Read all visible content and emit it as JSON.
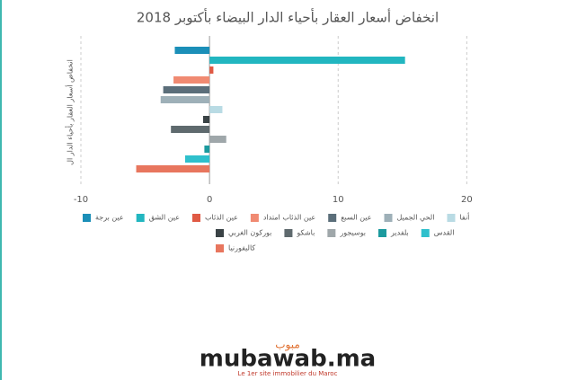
{
  "chart_data": {
    "type": "bar",
    "orientation": "horizontal",
    "title": "انخفاض أسعار العقار بأحياء الدار البيضاء بأكتوبر 2018",
    "y_label": "انخفاض أسعار العقار بأحياء الدار ال",
    "xlim": [
      -10,
      22
    ],
    "xticks": [
      -10,
      0,
      10,
      20
    ],
    "grid": true,
    "series": [
      {
        "name": "عين برجة",
        "color": "#1b8fb8",
        "values": [
          -2.7
        ]
      },
      {
        "name": "عين الشق",
        "color": "#22b6c0",
        "values": [
          15.2
        ]
      },
      {
        "name": "عين الذئاب",
        "color": "#e05a44",
        "values": [
          0.3
        ]
      },
      {
        "name": "عين الذئاب امتداد",
        "color": "#f08a72",
        "values": [
          -2.8
        ]
      },
      {
        "name": "عين السبع",
        "color": "#5b6e7a",
        "values": [
          -3.6
        ]
      },
      {
        "name": "الحي الجميل",
        "color": "#9eb0b8",
        "values": [
          -3.8
        ]
      },
      {
        "name": "أنفا",
        "color": "#b9dbe4",
        "values": [
          1.0
        ]
      },
      {
        "name": "بوركون الغربي",
        "color": "#3a4346",
        "values": [
          -0.5
        ]
      },
      {
        "name": "باشكو",
        "color": "#5f6a6e",
        "values": [
          -3.0
        ]
      },
      {
        "name": "بوسيجور",
        "color": "#9fa7aa",
        "values": [
          1.3
        ]
      },
      {
        "name": "بلفدير",
        "color": "#1c9a9e",
        "values": [
          -0.4
        ]
      },
      {
        "name": "القدس",
        "color": "#2fc0cc",
        "values": [
          -1.9
        ]
      },
      {
        "name": "كاليفورنيا",
        "color": "#e8765e",
        "values": [
          -5.7
        ]
      }
    ]
  },
  "logo": {
    "brand": "mubawab.ma",
    "arabic": "مبوب",
    "tagline": "Le 1er site immobilier du Maroc"
  }
}
